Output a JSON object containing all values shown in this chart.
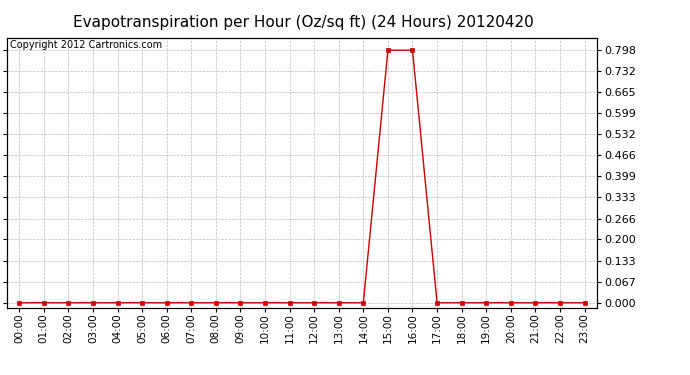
{
  "title": "Evapotranspiration per Hour (Oz/sq ft) (24 Hours) 20120420",
  "copyright_text": "Copyright 2012 Cartronics.com",
  "x_labels": [
    "00:00",
    "01:00",
    "02:00",
    "03:00",
    "04:00",
    "05:00",
    "06:00",
    "07:00",
    "08:00",
    "09:00",
    "10:00",
    "11:00",
    "12:00",
    "13:00",
    "14:00",
    "15:00",
    "16:00",
    "17:00",
    "18:00",
    "19:00",
    "20:00",
    "21:00",
    "22:00",
    "23:00"
  ],
  "hours": [
    0,
    1,
    2,
    3,
    4,
    5,
    6,
    7,
    8,
    9,
    10,
    11,
    12,
    13,
    14,
    15,
    16,
    17,
    18,
    19,
    20,
    21,
    22,
    23
  ],
  "values": [
    0,
    0,
    0,
    0,
    0,
    0,
    0,
    0,
    0,
    0,
    0,
    0,
    0,
    0,
    0,
    0.798,
    0.798,
    0,
    0,
    0,
    0,
    0,
    0,
    0
  ],
  "line_color": "#cc0000",
  "marker": "s",
  "marker_size": 2.5,
  "background_color": "#ffffff",
  "plot_bg_color": "#ffffff",
  "grid_color": "#bbbbbb",
  "yticks": [
    0.0,
    0.067,
    0.133,
    0.2,
    0.266,
    0.333,
    0.399,
    0.466,
    0.532,
    0.599,
    0.665,
    0.732,
    0.798
  ],
  "ylim": [
    -0.015,
    0.838
  ],
  "title_fontsize": 11,
  "copyright_fontsize": 7,
  "tick_fontsize": 7.5,
  "ytick_fontsize": 8
}
